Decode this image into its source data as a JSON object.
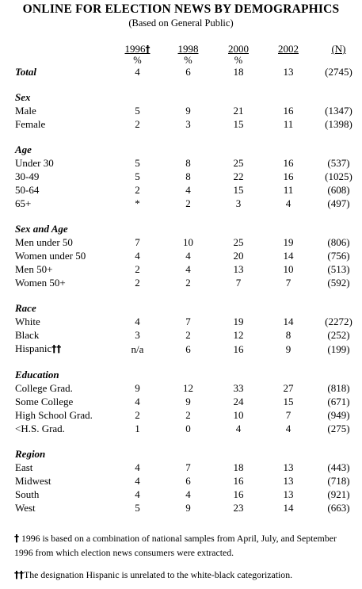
{
  "title": "ONLINE FOR ELECTION NEWS BY DEMOGRAPHICS",
  "subtitle": "(Based on General Public)",
  "columns": [
    {
      "year": "1996",
      "marker": "†",
      "unit": "%"
    },
    {
      "year": "1998",
      "marker": "",
      "unit": "%"
    },
    {
      "year": "2000",
      "marker": "",
      "unit": "%"
    },
    {
      "year": "2002",
      "marker": "",
      "unit": ""
    },
    {
      "year": "(N)",
      "marker": "",
      "unit": ""
    }
  ],
  "total": {
    "label": "Total",
    "values": [
      "4",
      "6",
      "18",
      "13",
      "(2745)"
    ]
  },
  "sections": [
    {
      "heading": "Sex",
      "rows": [
        {
          "label": "Male",
          "marker": "",
          "values": [
            "5",
            "9",
            "21",
            "16",
            "(1347)"
          ]
        },
        {
          "label": "Female",
          "marker": "",
          "values": [
            "2",
            "3",
            "15",
            "11",
            "(1398)"
          ]
        }
      ]
    },
    {
      "heading": "Age",
      "rows": [
        {
          "label": "Under 30",
          "marker": "",
          "values": [
            "5",
            "8",
            "25",
            "16",
            "(537)"
          ]
        },
        {
          "label": "30-49",
          "marker": "",
          "values": [
            "5",
            "8",
            "22",
            "16",
            "(1025)"
          ]
        },
        {
          "label": "50-64",
          "marker": "",
          "values": [
            "2",
            "4",
            "15",
            "11",
            "(608)"
          ]
        },
        {
          "label": "65+",
          "marker": "",
          "values": [
            "*",
            "2",
            "3",
            "4",
            "(497)"
          ]
        }
      ]
    },
    {
      "heading": "Sex and Age",
      "rows": [
        {
          "label": "Men under 50",
          "marker": "",
          "values": [
            "7",
            "10",
            "25",
            "19",
            "(806)"
          ]
        },
        {
          "label": "Women under 50",
          "marker": "",
          "values": [
            "4",
            "4",
            "20",
            "14",
            "(756)"
          ]
        },
        {
          "label": "Men 50+",
          "marker": "",
          "values": [
            "2",
            "4",
            "13",
            "10",
            "(513)"
          ]
        },
        {
          "label": "Women 50+",
          "marker": "",
          "values": [
            "2",
            "2",
            "7",
            "7",
            "(592)"
          ]
        }
      ]
    },
    {
      "heading": "Race",
      "rows": [
        {
          "label": "White",
          "marker": "",
          "values": [
            "4",
            "7",
            "19",
            "14",
            "(2272)"
          ]
        },
        {
          "label": "Black",
          "marker": "",
          "values": [
            "3",
            "2",
            "12",
            "8",
            "(252)"
          ]
        },
        {
          "label": "Hispanic",
          "marker": "††",
          "values": [
            "n/a",
            "6",
            "16",
            "9",
            "(199)"
          ]
        }
      ]
    },
    {
      "heading": "Education",
      "rows": [
        {
          "label": "College Grad.",
          "marker": "",
          "values": [
            "9",
            "12",
            "33",
            "27",
            "(818)"
          ]
        },
        {
          "label": "Some College",
          "marker": "",
          "values": [
            "4",
            "9",
            "24",
            "15",
            "(671)"
          ]
        },
        {
          "label": "High School Grad.",
          "marker": "",
          "values": [
            "2",
            "2",
            "10",
            "7",
            "(949)"
          ]
        },
        {
          "label": "<H.S. Grad.",
          "marker": "",
          "values": [
            "1",
            "0",
            "4",
            "4",
            "(275)"
          ]
        }
      ]
    },
    {
      "heading": "Region",
      "rows": [
        {
          "label": "East",
          "marker": "",
          "values": [
            "4",
            "7",
            "18",
            "13",
            "(443)"
          ]
        },
        {
          "label": "Midwest",
          "marker": "",
          "values": [
            "4",
            "6",
            "16",
            "13",
            "(718)"
          ]
        },
        {
          "label": "South",
          "marker": "",
          "values": [
            "4",
            "4",
            "16",
            "13",
            "(921)"
          ]
        },
        {
          "label": "West",
          "marker": "",
          "values": [
            "5",
            "9",
            "23",
            "14",
            "(663)"
          ]
        }
      ]
    }
  ],
  "footnotes": [
    {
      "marker": "†",
      "text": " 1996 is based on a combination of national samples from April, July, and September 1996 from which election news consumers were extracted."
    },
    {
      "marker": "††",
      "text": "The designation Hispanic is unrelated to the white-black categorization."
    }
  ]
}
